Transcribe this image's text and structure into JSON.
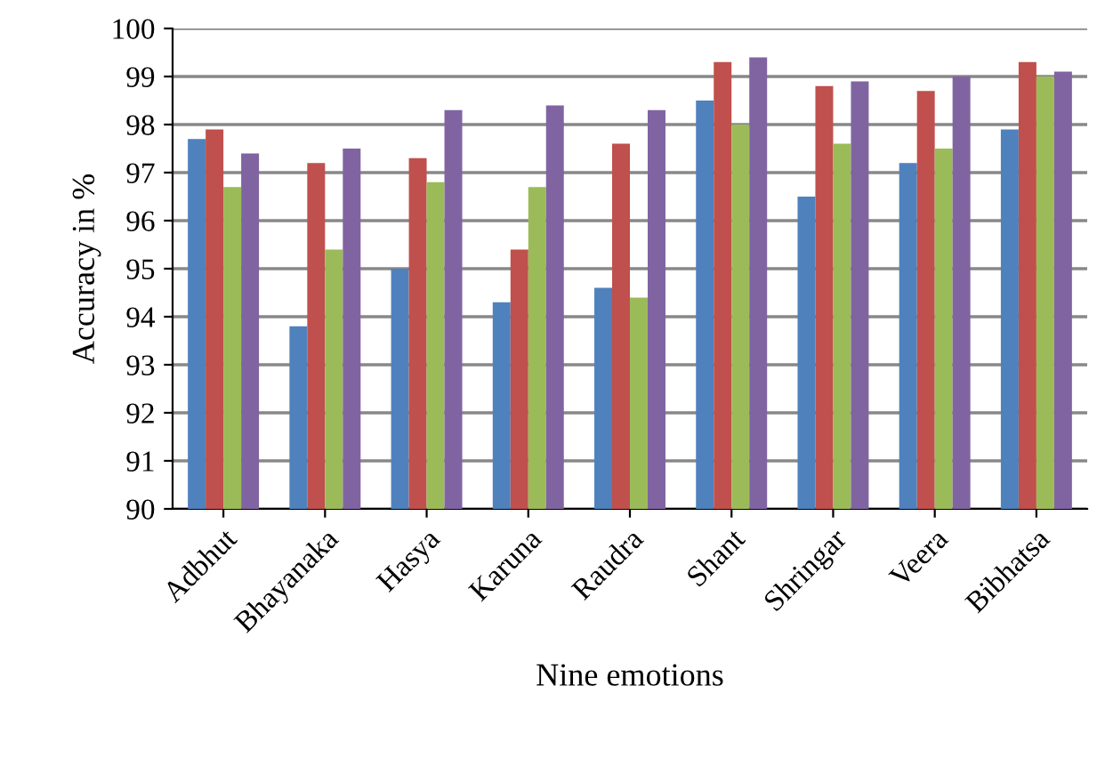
{
  "chart_data": {
    "type": "bar",
    "xlabel": "Nine emotions",
    "ylabel": "Accuracy in %",
    "categories": [
      "Adbhut",
      "Bhayanaka",
      "Hasya",
      "Karuna",
      "Raudra",
      "Shant",
      "Shringar",
      "Veera",
      "Bibhatsa"
    ],
    "series": [
      {
        "color": "#4f81bd",
        "values": [
          97.7,
          93.8,
          95.0,
          94.3,
          94.6,
          98.5,
          96.5,
          97.2,
          97.9
        ]
      },
      {
        "color": "#c0504d",
        "values": [
          97.9,
          97.2,
          97.3,
          95.4,
          97.6,
          99.3,
          98.8,
          98.7,
          99.3
        ]
      },
      {
        "color": "#9bbb59",
        "values": [
          96.7,
          95.4,
          96.8,
          96.7,
          94.4,
          98.0,
          97.6,
          97.5,
          99.0
        ]
      },
      {
        "color": "#8064a2",
        "values": [
          97.4,
          97.5,
          98.3,
          98.4,
          98.3,
          99.4,
          98.9,
          99.0,
          99.1
        ]
      }
    ],
    "ylim": [
      90,
      100
    ],
    "yticks": [
      90,
      91,
      92,
      93,
      94,
      95,
      96,
      97,
      98,
      99,
      100
    ],
    "grid": "y"
  }
}
